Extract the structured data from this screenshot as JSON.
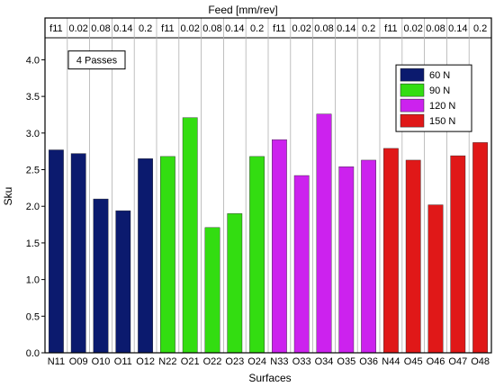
{
  "chart_data": {
    "type": "bar",
    "top_title": "Feed [mm/rev]",
    "xlabel": "Surfaces",
    "ylabel": "Sku",
    "ylim": [
      0,
      4.3
    ],
    "yticks": [
      "0.0",
      "0.5",
      "1.0",
      "1.5",
      "2.0",
      "2.5",
      "3.0",
      "3.5",
      "4.0"
    ],
    "annotation": "4 Passes",
    "feed_labels": [
      "f11",
      "0.02",
      "0.08",
      "0.14",
      "0.2",
      "f11",
      "0.02",
      "0.08",
      "0.14",
      "0.2",
      "f11",
      "0.02",
      "0.08",
      "0.14",
      "0.2",
      "f11",
      "0.02",
      "0.08",
      "0.14",
      "0.2"
    ],
    "categories": [
      "N11",
      "O09",
      "O10",
      "O11",
      "O12",
      "N22",
      "O21",
      "O22",
      "O23",
      "O24",
      "N33",
      "O33",
      "O34",
      "O35",
      "O36",
      "N44",
      "O45",
      "O46",
      "O47",
      "O48"
    ],
    "values": [
      2.77,
      2.72,
      2.1,
      1.94,
      2.65,
      2.68,
      3.21,
      1.71,
      1.9,
      2.68,
      2.91,
      2.42,
      3.26,
      2.54,
      2.63,
      2.79,
      2.63,
      2.02,
      2.69,
      2.87
    ],
    "series": [
      {
        "name": "60 N",
        "color": "#0b1a6e",
        "start": 0,
        "count": 5
      },
      {
        "name": "90 N",
        "color": "#33dd11",
        "start": 5,
        "count": 5
      },
      {
        "name": "120 N",
        "color": "#cc22ee",
        "start": 10,
        "count": 5
      },
      {
        "name": "150 N",
        "color": "#e01818",
        "start": 15,
        "count": 5
      }
    ],
    "legend_position": "top-right",
    "grid": "vertical category lines"
  }
}
